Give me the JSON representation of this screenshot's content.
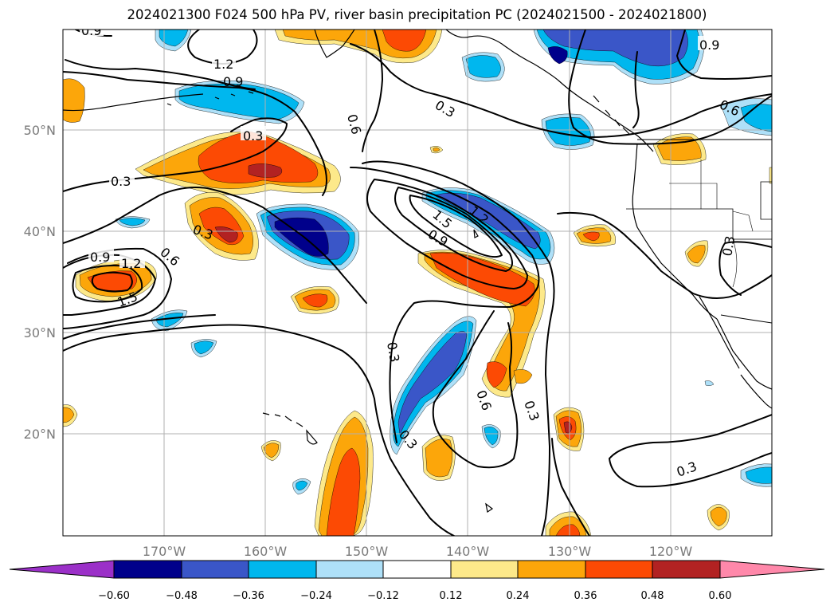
{
  "title": "2024021300 F024 500 hPa PV, river basin precipitation PC (2024021500 - 2024021800)",
  "colors": {
    "neg_060": "#9b30c8",
    "neg_048": "#00008b",
    "neg_036": "#3a56c8",
    "neg_024": "#00b7ee",
    "neg_012": "#aee0f8",
    "zero": "#ffffff",
    "pos_012": "#fde98a",
    "pos_024": "#fca60a",
    "pos_036": "#fc4a04",
    "pos_048": "#b22222",
    "pos_060": "#ff88aa",
    "contour": "#000000",
    "grid": "#b0b0b0",
    "axis_label": "#7a7a7a"
  },
  "axes": {
    "lon_ticks": [
      "170°W",
      "160°W",
      "150°W",
      "140°W",
      "130°W",
      "120°W"
    ],
    "lat_ticks": [
      "50°N",
      "40°N",
      "30°N",
      "20°N"
    ]
  },
  "colorbar": {
    "ticks": [
      "−0.60",
      "−0.48",
      "−0.36",
      "−0.24",
      "−0.12",
      "0.12",
      "0.24",
      "0.36",
      "0.48",
      "0.60"
    ],
    "extend": "both"
  },
  "contour_labels": [
    "0.9",
    "1.2",
    "0.9",
    "0.3",
    "0.3",
    "0.3",
    "0.9",
    "1.2",
    "1.5",
    "0.6",
    "0.6",
    "0.3",
    "1.5",
    "1.2",
    "0.9",
    "0.3",
    "0.6",
    "0.3",
    "0.3",
    "0.9",
    "0.6",
    "0.3",
    "0.3"
  ]
}
